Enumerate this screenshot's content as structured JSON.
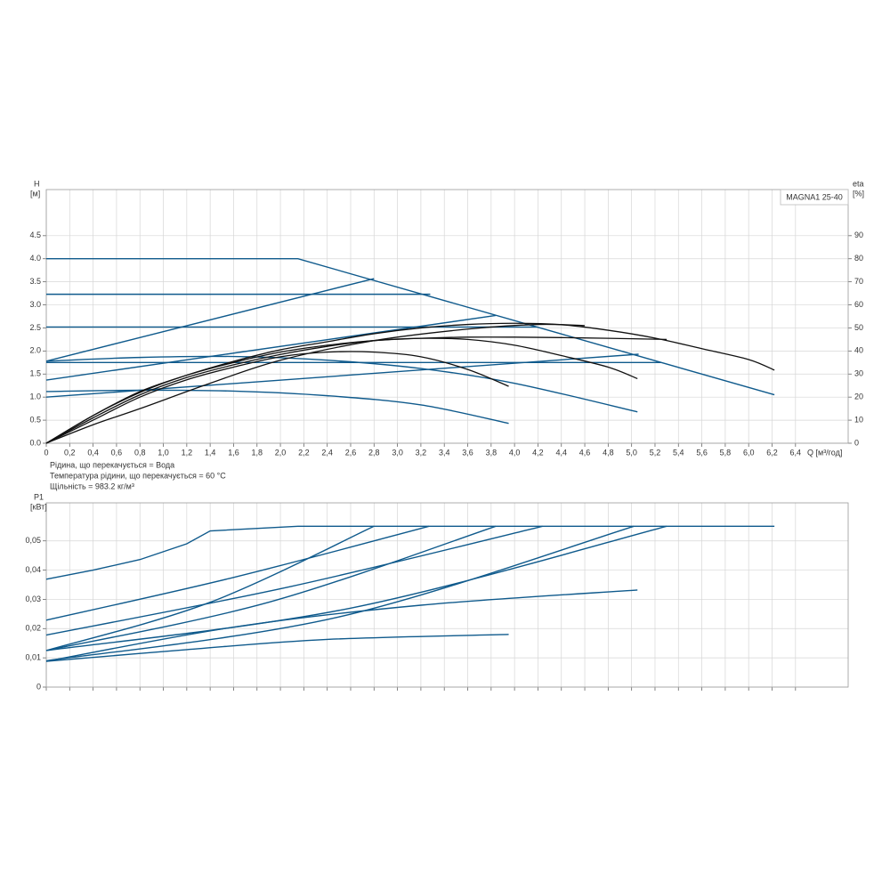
{
  "chart_data": [
    {
      "type": "line",
      "box_label": "MAGNA1 25-40",
      "ylabel": "H",
      "yunit": "[м]",
      "y2label": "eta",
      "y2unit": "[%]",
      "xlabel": "Q [м³/год]",
      "notes": [
        "Рідина, що перекачується = Вода",
        "Температура рідини, що перекачується = 60 °C",
        "Щільність = 983.2 кг/м³"
      ],
      "grid": true,
      "xlim": [
        0,
        6.85
      ],
      "ylim": [
        0,
        5.5
      ],
      "y2lim": [
        0,
        110
      ],
      "xticks": [
        0,
        {
          "value": 0.2,
          "label": "0,2"
        },
        {
          "value": 0.4,
          "label": "0,4"
        },
        {
          "value": 0.6,
          "label": "0,6"
        },
        {
          "value": 0.8,
          "label": "0,8"
        },
        {
          "value": 1,
          "label": "1,0"
        },
        {
          "value": 1.2,
          "label": "1,2"
        },
        {
          "value": 1.4,
          "label": "1,4"
        },
        {
          "value": 1.6,
          "label": "1,6"
        },
        {
          "value": 1.8,
          "label": "1,8"
        },
        {
          "value": 2,
          "label": "2,0"
        },
        {
          "value": 2.2,
          "label": "2,2"
        },
        {
          "value": 2.4,
          "label": "2,4"
        },
        {
          "value": 2.6,
          "label": "2,6"
        },
        {
          "value": 2.8,
          "label": "2,8"
        },
        {
          "value": 3,
          "label": "3,0"
        },
        {
          "value": 3.2,
          "label": "3,2"
        },
        {
          "value": 3.4,
          "label": "3,4"
        },
        {
          "value": 3.6,
          "label": "3,6"
        },
        {
          "value": 3.8,
          "label": "3,8"
        },
        {
          "value": 4,
          "label": "4,0"
        },
        {
          "value": 4.2,
          "label": "4,2"
        },
        {
          "value": 4.4,
          "label": "4,4"
        },
        {
          "value": 4.6,
          "label": "4,6"
        },
        {
          "value": 4.8,
          "label": "4,8"
        },
        {
          "value": 5,
          "label": "5,0"
        },
        {
          "value": 5.2,
          "label": "5,2"
        },
        {
          "value": 5.4,
          "label": "5,4"
        },
        {
          "value": 5.6,
          "label": "5,6"
        },
        {
          "value": 5.8,
          "label": "5,8"
        },
        {
          "value": 6,
          "label": "6,0"
        },
        {
          "value": 6.2,
          "label": "6,2"
        },
        {
          "value": 6.4,
          "label": "6,4"
        }
      ],
      "yticks": [
        {
          "value": 0,
          "label": "0.0"
        },
        {
          "value": 0.5,
          "label": "0.5"
        },
        {
          "value": 1,
          "label": "1.0"
        },
        {
          "value": 1.5,
          "label": "1.5"
        },
        {
          "value": 2,
          "label": "2.0"
        },
        {
          "value": 2.5,
          "label": "2.5"
        },
        {
          "value": 3,
          "label": "3.0"
        },
        {
          "value": 3.5,
          "label": "3.5"
        },
        {
          "value": 4,
          "label": "4.0"
        },
        {
          "value": 4.5,
          "label": "4.5"
        }
      ],
      "y2ticks": [
        0,
        10,
        20,
        30,
        40,
        50,
        60,
        70,
        80,
        90
      ],
      "series": [
        {
          "color": "#0f5a8c",
          "x": [
            0,
            2.15,
            6.22
          ],
          "values": [
            4.0,
            4.0,
            1.05
          ]
        },
        {
          "color": "#0f5a8c",
          "x": [
            0,
            3.28
          ],
          "values": [
            3.23,
            3.23
          ]
        },
        {
          "color": "#0f5a8c",
          "x": [
            0,
            4.19
          ],
          "values": [
            2.52,
            2.52
          ]
        },
        {
          "color": "#0f5a8c",
          "x": [
            0,
            5.25
          ],
          "values": [
            1.75,
            1.75
          ]
        },
        {
          "color": "#0f5a8c",
          "x": [
            0,
            2.8
          ],
          "values": [
            1.78,
            3.57
          ]
        },
        {
          "color": "#0f5a8c",
          "x": [
            0,
            3.84
          ],
          "values": [
            1.37,
            2.77
          ]
        },
        {
          "color": "#0f5a8c",
          "x": [
            0,
            5.06
          ],
          "values": [
            1.0,
            1.93
          ]
        },
        {
          "color": "#0f5a8c",
          "smooth": true,
          "x": [
            0,
            0.8,
            1.6,
            2.4,
            3.2,
            3.95
          ],
          "values": [
            1.12,
            1.15,
            1.13,
            1.03,
            0.83,
            0.43
          ]
        },
        {
          "color": "#0f5a8c",
          "smooth": true,
          "x": [
            0,
            0.8,
            1.6,
            2.4,
            3.2,
            4.0,
            5.05
          ],
          "values": [
            1.78,
            1.86,
            1.88,
            1.8,
            1.62,
            1.3,
            0.68
          ]
        },
        {
          "color": "#111111",
          "axis": "y2",
          "smooth": true,
          "x": [
            0,
            0.4,
            0.8,
            1.2,
            1.6,
            2.0,
            2.4,
            2.8,
            3.2,
            3.6,
            4.0,
            4.4,
            4.8,
            5.2,
            5.6,
            6.0,
            6.22
          ],
          "values": [
            0,
            12,
            22.4,
            29.5,
            35.5,
            40.5,
            44,
            47.5,
            50,
            51.5,
            52,
            51.4,
            49,
            45.6,
            41,
            36.3,
            31.7
          ]
        },
        {
          "color": "#111111",
          "axis": "y2",
          "smooth": true,
          "x": [
            0,
            0.4,
            0.8,
            1.2,
            1.6,
            2.0,
            2.4,
            2.8,
            3.2,
            3.6,
            4.0,
            4.4,
            4.8,
            5.3
          ],
          "values": [
            0,
            12,
            22,
            29.5,
            35,
            39.5,
            42.5,
            44.5,
            45.5,
            46,
            46,
            45.8,
            45.5,
            45
          ]
        },
        {
          "color": "#111111",
          "axis": "y2",
          "smooth": true,
          "x": [
            0,
            0.4,
            0.8,
            1.2,
            1.6,
            2.0,
            2.4,
            2.8,
            3.2,
            3.6,
            4.0,
            4.4,
            4.8,
            5.05
          ],
          "values": [
            0,
            11,
            21,
            28.5,
            34,
            38.5,
            42,
            44.5,
            45.5,
            45,
            42.5,
            38,
            33,
            28
          ]
        },
        {
          "color": "#111111",
          "axis": "y2",
          "smooth": true,
          "x": [
            0,
            0.4,
            0.8,
            1.2,
            1.6,
            2.0,
            2.4,
            2.8,
            3.2,
            3.6,
            3.95
          ],
          "values": [
            0,
            10,
            20,
            27.5,
            33,
            37.5,
            39.5,
            39.5,
            37.5,
            32,
            24.7
          ]
        },
        {
          "color": "#111111",
          "axis": "y2",
          "smooth": true,
          "x": [
            0,
            0.4,
            0.8,
            1.4,
            2.0,
            2.8,
            3.6,
            4.2,
            4.6
          ],
          "values": [
            0,
            8,
            15,
            26,
            36,
            44.5,
            49.5,
            51.5,
            51
          ]
        }
      ]
    },
    {
      "type": "line",
      "ylabel": "P1",
      "yunit": "[кВт]",
      "grid": true,
      "xlim": [
        0,
        6.85
      ],
      "ylim": [
        0,
        0.063
      ],
      "yticks": [
        0,
        {
          "value": 0.01,
          "label": "0,01"
        },
        {
          "value": 0.02,
          "label": "0,02"
        },
        {
          "value": 0.03,
          "label": "0,03"
        },
        {
          "value": 0.04,
          "label": "0,04"
        },
        {
          "value": 0.05,
          "label": "0,05"
        }
      ],
      "series": [
        {
          "color": "#0f5a8c",
          "x": [
            0,
            0.4,
            0.8,
            1.2,
            1.4,
            2.15,
            6.22
          ],
          "values": [
            0.0369,
            0.04,
            0.0436,
            0.049,
            0.0534,
            0.055,
            0.055
          ]
        },
        {
          "color": "#0f5a8c",
          "smooth": true,
          "x": [
            0,
            1.6,
            3.27
          ],
          "values": [
            0.0229,
            0.0375,
            0.055
          ]
        },
        {
          "color": "#0f5a8c",
          "smooth": true,
          "x": [
            0,
            2.1,
            4.24
          ],
          "values": [
            0.0178,
            0.0345,
            0.055
          ]
        },
        {
          "color": "#0f5a8c",
          "smooth": true,
          "x": [
            0,
            1.4,
            2.8
          ],
          "values": [
            0.0125,
            0.029,
            0.055
          ]
        },
        {
          "color": "#0f5a8c",
          "smooth": true,
          "x": [
            0,
            1.9,
            3.84
          ],
          "values": [
            0.0125,
            0.029,
            0.055
          ]
        },
        {
          "color": "#0f5a8c",
          "smooth": true,
          "x": [
            0,
            2.5,
            5.02
          ],
          "values": [
            0.009,
            0.024,
            0.055
          ]
        },
        {
          "color": "#0f5a8c",
          "smooth": true,
          "x": [
            0,
            2.6,
            5.3
          ],
          "values": [
            0.0125,
            0.027,
            0.055
          ]
        },
        {
          "color": "#0f5a8c",
          "smooth": true,
          "x": [
            0,
            1.6,
            3.2,
            5.05
          ],
          "values": [
            0.0088,
            0.0205,
            0.028,
            0.0332
          ]
        },
        {
          "color": "#0f5a8c",
          "smooth": true,
          "x": [
            0,
            1.2,
            2.4,
            3.95
          ],
          "values": [
            0.0088,
            0.0128,
            0.0163,
            0.018
          ]
        }
      ]
    }
  ]
}
